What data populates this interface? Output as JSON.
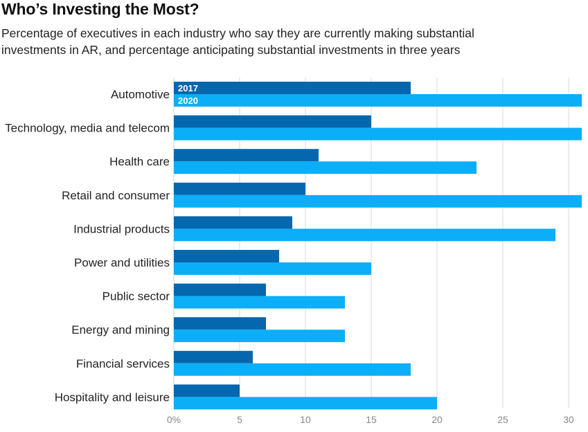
{
  "title": "Who’s Investing the Most?",
  "subtitle_line1": "Percentage of executives in each industry who say they are currently making substantial",
  "subtitle_line2": "investments in AR, and percentage anticipating substantial investments in three years",
  "colors": {
    "series_2017": "#0567AE",
    "series_2020": "#0DAEF8",
    "grid": "#D9D9D9",
    "tick_text": "#888888"
  },
  "chart_data": {
    "type": "bar",
    "orientation": "horizontal",
    "categories": [
      "Automotive",
      "Technology, media and telecom",
      "Health care",
      "Retail and consumer",
      "Industrial products",
      "Power and utilities",
      "Public sector",
      "Energy and mining",
      "Financial services",
      "Hospitality and leisure"
    ],
    "series": [
      {
        "name": "2017",
        "values": [
          18,
          15,
          11,
          10,
          9,
          8,
          7,
          7,
          6,
          5
        ]
      },
      {
        "name": "2020",
        "values": [
          31,
          31,
          23,
          31,
          29,
          15,
          13,
          13,
          18,
          20
        ]
      }
    ],
    "x_ticks": [
      "0%",
      "5",
      "10",
      "15",
      "20",
      "25",
      "30"
    ],
    "x_tick_values": [
      0,
      5,
      10,
      15,
      20,
      25,
      30
    ],
    "xlim": [
      0,
      31
    ],
    "grid": true,
    "legend": "inside-first-bars"
  }
}
